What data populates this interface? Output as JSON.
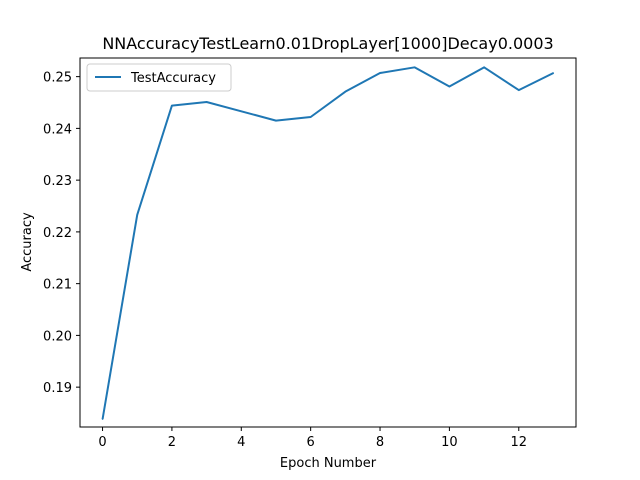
{
  "chart_data": {
    "type": "line",
    "title": "NNAccuracyTestLearn0.01DropLayer[1000]Decay0.0003",
    "xlabel": "Epoch Number",
    "ylabel": "Accuracy",
    "xlim": [
      -0.65,
      13.65
    ],
    "ylim": [
      0.1823,
      0.2536
    ],
    "xticks": [
      0,
      2,
      4,
      6,
      8,
      10,
      12
    ],
    "xtick_labels": [
      "0",
      "2",
      "4",
      "6",
      "8",
      "10",
      "12"
    ],
    "yticks": [
      0.19,
      0.2,
      0.21,
      0.22,
      0.23,
      0.24,
      0.25
    ],
    "ytick_labels": [
      "0.19",
      "0.20",
      "0.21",
      "0.22",
      "0.23",
      "0.24",
      "0.25"
    ],
    "grid": false,
    "legend_position": "top-left",
    "series": [
      {
        "name": "TestAccuracy",
        "color": "#1f77b4",
        "x": [
          0,
          1,
          2,
          3,
          4,
          5,
          6,
          7,
          8,
          9,
          10,
          11,
          12,
          13
        ],
        "y": [
          0.1838,
          0.2233,
          0.2444,
          0.2451,
          0.2433,
          0.2415,
          0.2422,
          0.2471,
          0.2507,
          0.2518,
          0.2481,
          0.2518,
          0.2474,
          0.2507
        ]
      }
    ]
  }
}
